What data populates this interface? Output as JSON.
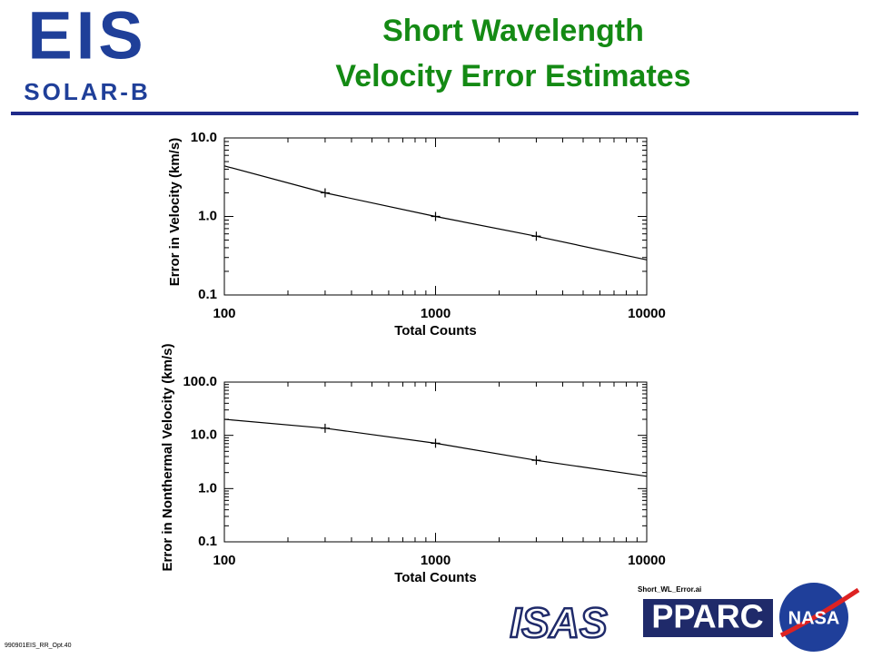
{
  "logo": {
    "name": "EIS",
    "sub": "SOLAR-B"
  },
  "title": [
    "Short Wavelength",
    "Velocity Error Estimates"
  ],
  "chart_data": [
    {
      "type": "line",
      "x": [
        100,
        300,
        1000,
        3000,
        10000
      ],
      "values": [
        4.4,
        2.0,
        1.0,
        0.56,
        0.28
      ],
      "marker_x": [
        300,
        1000,
        3000
      ],
      "marker_values": [
        2.0,
        1.0,
        0.56
      ],
      "xlim": [
        100,
        10000
      ],
      "ylim": [
        0.1,
        10
      ],
      "log_x": true,
      "log_y": true,
      "xticks": [
        100,
        1000,
        10000
      ],
      "yticks": [
        0.1,
        {
          "value": 1,
          "label": "1.0"
        },
        {
          "value": 10,
          "label": "10.0"
        }
      ],
      "x_label": "Total Counts",
      "y_label": "Error in Velocity (km/s)",
      "color": "#000000"
    },
    {
      "type": "line",
      "x": [
        100,
        300,
        1000,
        3000,
        10000
      ],
      "values": [
        20,
        13.6,
        7.1,
        3.4,
        1.7
      ],
      "marker_x": [
        300,
        1000,
        3000
      ],
      "marker_values": [
        13.6,
        7.1,
        3.4
      ],
      "xlim": [
        100,
        10000
      ],
      "ylim": [
        0.1,
        100
      ],
      "log_x": true,
      "log_y": true,
      "xticks": [
        100,
        1000,
        10000
      ],
      "yticks": [
        0.1,
        {
          "value": 1,
          "label": "1.0"
        },
        {
          "value": 10,
          "label": "10.0"
        },
        {
          "value": 100,
          "label": "100.0"
        }
      ],
      "x_label": "Total Counts",
      "y_label": "Error in Nonthermal Velocity (km/s)",
      "color": "#000000"
    }
  ],
  "file_label": "Short_WL_Error.ai",
  "sponsors": [
    "ISAS",
    "PPARC",
    "NASA"
  ],
  "footer": "990901EIS_RR_Opt.40"
}
